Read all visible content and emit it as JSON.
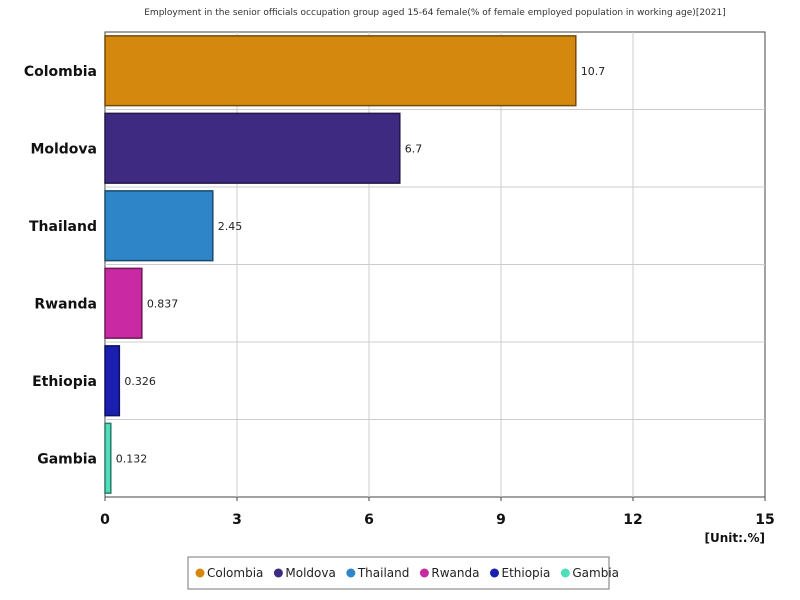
{
  "chart_data": {
    "type": "bar",
    "orientation": "horizontal",
    "title": "Employment in the senior officials occupation group aged 15-64 female(% of female employed population in working age)[2021]",
    "categories": [
      "Colombia",
      "Moldova",
      "Thailand",
      "Rwanda",
      "Ethiopia",
      "Gambia"
    ],
    "values": [
      10.7,
      6.7,
      2.45,
      0.837,
      0.326,
      0.132
    ],
    "value_labels": [
      "10.7",
      "6.7",
      "2.45",
      "0.837",
      "0.326",
      "0.132"
    ],
    "colors": [
      "#D4890E",
      "#3F2A82",
      "#2E86C8",
      "#C92AA4",
      "#1A1FB0",
      "#4FDEBC"
    ],
    "xlim": [
      0,
      15
    ],
    "xticks": [
      0,
      3,
      6,
      9,
      12,
      15
    ],
    "xtick_labels": [
      "0",
      "3",
      "6",
      "9",
      "12",
      "15"
    ],
    "unit": "[Unit:.%]",
    "grid": true,
    "legend_position": "bottom"
  }
}
